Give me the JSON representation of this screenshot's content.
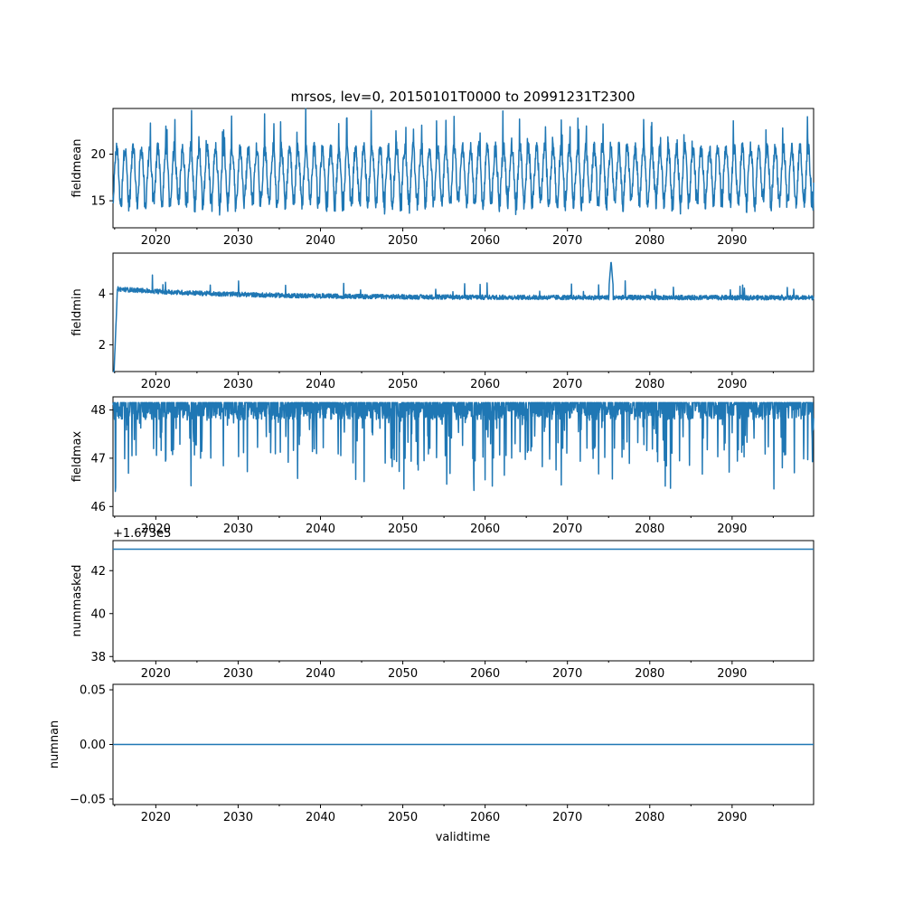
{
  "chart_data": [
    {
      "type": "line",
      "title": "mrsos, lev=0, 20150101T0000 to 20991231T2300",
      "ylabel": "fieldmean",
      "xlabel": "",
      "xlim": [
        2014.8,
        2099.9
      ],
      "ylim": [
        12.1,
        24.9
      ],
      "yticks": [
        15,
        20
      ],
      "x_ticks": [
        "2020",
        "2030",
        "2040",
        "2050",
        "2060",
        "2070",
        "2080",
        "2090"
      ],
      "offset_text": "",
      "series": [
        {
          "name": "fieldmean",
          "color": "#1f77b4",
          "x": [],
          "values": []
        }
      ]
    },
    {
      "type": "line",
      "title": "",
      "ylabel": "fieldmin",
      "xlabel": "",
      "xlim": [
        2014.8,
        2099.9
      ],
      "ylim": [
        0.95,
        5.6
      ],
      "yticks": [
        2,
        4
      ],
      "x_ticks": [
        "2020",
        "2030",
        "2040",
        "2050",
        "2060",
        "2070",
        "2080",
        "2090"
      ],
      "offset_text": "",
      "series": [
        {
          "name": "fieldmin",
          "color": "#1f77b4",
          "x": [],
          "values": []
        }
      ]
    },
    {
      "type": "line",
      "title": "",
      "ylabel": "fieldmax",
      "xlabel": "",
      "xlim": [
        2014.8,
        2099.9
      ],
      "ylim": [
        45.8,
        48.27
      ],
      "yticks": [
        46,
        47,
        48
      ],
      "x_ticks": [
        "2020",
        "2030",
        "2040",
        "2050",
        "2060",
        "2070",
        "2080",
        "2090"
      ],
      "offset_text": "",
      "series": [
        {
          "name": "fieldmax",
          "color": "#1f77b4",
          "x": [],
          "values": []
        }
      ]
    },
    {
      "type": "line",
      "title": "",
      "ylabel": "nummasked",
      "xlabel": "",
      "xlim": [
        2014.8,
        2099.9
      ],
      "ylim": [
        37.8,
        43.4
      ],
      "yticks": [
        38,
        40,
        42
      ],
      "x_ticks": [
        "2020",
        "2030",
        "2040",
        "2050",
        "2060",
        "2070",
        "2080",
        "2090"
      ],
      "offset_text": "+1.673e5",
      "series": [
        {
          "name": "nummasked",
          "color": "#1f77b4",
          "x": [
            2014.8,
            2099.9
          ],
          "values": [
            43.0,
            43.0
          ]
        }
      ]
    },
    {
      "type": "line",
      "title": "",
      "ylabel": "numnan",
      "xlabel": "validtime",
      "xlim": [
        2014.8,
        2099.9
      ],
      "ylim": [
        -0.055,
        0.055
      ],
      "yticks": [
        -0.05,
        0.0,
        0.05
      ],
      "ytick_labels": [
        "−0.05",
        "0.00",
        "0.05"
      ],
      "x_ticks": [
        "2020",
        "2030",
        "2040",
        "2050",
        "2060",
        "2070",
        "2080",
        "2090"
      ],
      "offset_text": "",
      "series": [
        {
          "name": "numnan",
          "color": "#1f77b4",
          "x": [
            2014.8,
            2099.9
          ],
          "values": [
            0.0,
            0.0
          ]
        }
      ]
    }
  ]
}
